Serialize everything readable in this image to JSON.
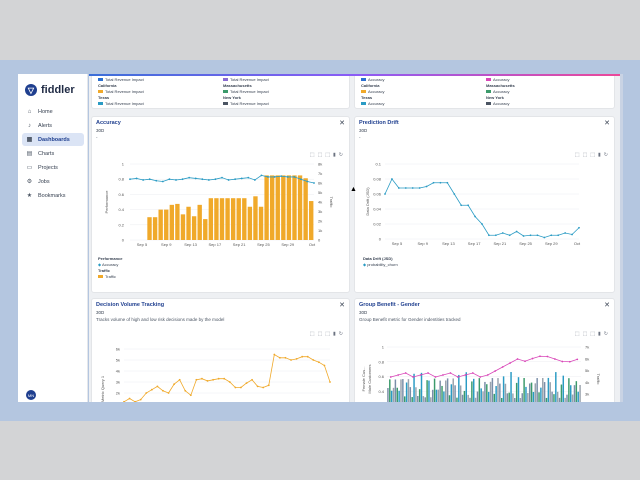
{
  "app": {
    "name": "fiddler",
    "user_initials": "MN"
  },
  "nav": [
    {
      "label": "Home",
      "icon": "home-icon"
    },
    {
      "label": "Alerts",
      "icon": "bell-icon"
    },
    {
      "label": "Dashboards",
      "icon": "dashboard-icon",
      "active": true
    },
    {
      "label": "Charts",
      "icon": "chart-icon"
    },
    {
      "label": "Projects",
      "icon": "folder-icon"
    },
    {
      "label": "Jobs",
      "icon": "jobs-icon"
    },
    {
      "label": "Bookmarks",
      "icon": "star-icon"
    }
  ],
  "top_left_legend": {
    "row1": [
      "Total Revenue Impact",
      "Total Revenue Impact"
    ],
    "row2_labels": [
      "California",
      "Massachusetts"
    ],
    "row2": [
      "Total Revenue Impact",
      "Total Revenue Impact"
    ],
    "row3_labels": [
      "Texas",
      "New York"
    ],
    "row3": [
      "Total Revenue Impact",
      "Total Revenue Impact"
    ]
  },
  "top_right_legend": {
    "row1": [
      "Accuracy",
      "Accuracy"
    ],
    "row2_labels": [
      "California",
      "Massachusetts"
    ],
    "row2": [
      "Accuracy",
      "Accuracy"
    ],
    "row3_labels": [
      "Texas",
      "New York"
    ],
    "row3": [
      "Accuracy",
      "Accuracy"
    ]
  },
  "cards": {
    "accuracy": {
      "title": "Accuracy",
      "period": "30D",
      "desc": "-",
      "ylabel": "Performance",
      "y2label": "Traffic",
      "legend_perf_title": "Performance",
      "legend_perf": "Accuracy",
      "legend_traffic_title": "Traffic",
      "legend_traffic": "Traffic"
    },
    "drift": {
      "title": "Prediction Drift",
      "period": "30D",
      "desc": "-",
      "ylabel": "Data Drift (JSD)",
      "legend_title": "Data Drift (JSD)",
      "legend_item": "probability_churn"
    },
    "decision": {
      "title": "Decision Volume Tracking",
      "period": "30D",
      "desc": "Tracks volume of high and low risk decisions made by the model",
      "ylabel": "Metric Query 1"
    },
    "group": {
      "title": "Group Benefit - Gender",
      "period": "30D",
      "desc": "Group Benefit metric for Gender indentities tracked",
      "ylabel": "Female Cus...",
      "ylabel2": "Male Customers",
      "y2label": "Traffic"
    }
  },
  "chart_data": [
    {
      "type": "bar",
      "title": "Accuracy",
      "x_ticks": [
        "Sep 5",
        "Sep 9",
        "Sep 13",
        "Sep 17",
        "Sep 21",
        "Sep 25",
        "Sep 29",
        "Oct"
      ],
      "y_ticks": [
        "0",
        "0.2",
        "0.4",
        "0.6",
        "0.8",
        "1"
      ],
      "y2_ticks": [
        "0",
        "1k",
        "2k",
        "3k",
        "4k",
        "5k",
        "6k",
        "7k",
        "8k"
      ],
      "series": [
        {
          "name": "Accuracy",
          "type": "line",
          "values": [
            0.8,
            0.81,
            0.79,
            0.8,
            0.78,
            0.77,
            0.8,
            0.79,
            0.8,
            0.82,
            0.81,
            0.8,
            0.79,
            0.8,
            0.82,
            0.79,
            0.8,
            0.81,
            0.82,
            0.79,
            0.85,
            0.83,
            0.83,
            0.84,
            0.83,
            0.83,
            0.8,
            0.77,
            0.75
          ]
        },
        {
          "name": "Traffic",
          "type": "bar",
          "values": [
            0,
            0,
            0,
            2.4,
            2.4,
            3.2,
            3.2,
            3.7,
            3.8,
            2.7,
            3.5,
            2.5,
            3.7,
            2.2,
            4.4,
            4.4,
            4.4,
            4.4,
            4.4,
            4.4,
            4.4,
            3.5,
            4.6,
            3.5,
            6.8,
            6.8,
            6.8,
            6.8,
            6.8,
            6.8,
            6.8,
            6.5,
            4.1
          ]
        }
      ]
    },
    {
      "type": "line",
      "title": "Prediction Drift",
      "x_ticks": [
        "Sep 5",
        "Sep 9",
        "Sep 13",
        "Sep 17",
        "Sep 21",
        "Sep 25",
        "Sep 29",
        "Oct"
      ],
      "y_ticks": [
        "0",
        "0.02",
        "0.04",
        "0.06",
        "0.08",
        "0.1"
      ],
      "series": [
        {
          "name": "probability_churn",
          "values": [
            0.06,
            0.08,
            0.068,
            0.068,
            0.068,
            0.068,
            0.07,
            0.075,
            0.075,
            0.075,
            0.06,
            0.045,
            0.045,
            0.03,
            0.02,
            0.005,
            0.005,
            0.008,
            0.005,
            0.01,
            0.004,
            0.005,
            0.005,
            0.002,
            0.005,
            0.005,
            0.008,
            0.006,
            0.015
          ]
        }
      ]
    },
    {
      "type": "line",
      "title": "Decision Volume Tracking",
      "y_ticks": [
        "1k",
        "2k",
        "3k",
        "4k",
        "5k",
        "6k"
      ],
      "series": [
        {
          "name": "Metric Query 1",
          "values": [
            1.2,
            1.5,
            1.2,
            1.4,
            2,
            2.3,
            2.6,
            2.2,
            2,
            2.8,
            3.2,
            2.2,
            1.8,
            3.2,
            3.3,
            3.1,
            3.2,
            3.3,
            3.3,
            3,
            2.5,
            2.5,
            2.9,
            3.2,
            2.6,
            2.5,
            2.7,
            5.5,
            5.2,
            5.2,
            5,
            5.1,
            5.3,
            5.3,
            5,
            4.8,
            4.5,
            3
          ]
        }
      ]
    },
    {
      "type": "bar",
      "title": "Group Benefit - Gender",
      "y_ticks": [
        "0.2",
        "0.4",
        "0.6",
        "0.8",
        "1"
      ],
      "y2_ticks": [
        "2k",
        "3k",
        "4k",
        "5k",
        "6k",
        "7k"
      ]
    }
  ],
  "colors": {
    "accent": "#1f3f8f",
    "line": "#2a9bc4",
    "bar": "#f0a92a",
    "pink": "#d946b8",
    "green": "#3b9a6b",
    "purple": "#8a6bd1"
  }
}
